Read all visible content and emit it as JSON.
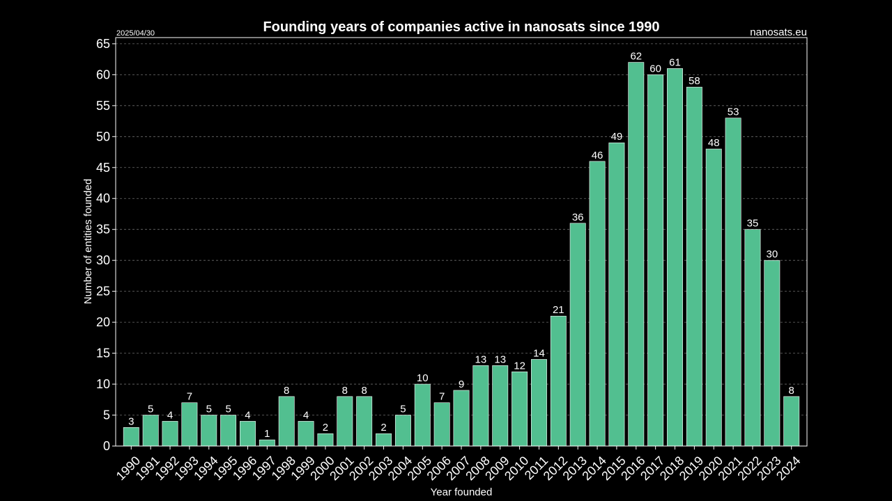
{
  "header": {
    "date": "2025/04/30",
    "source": "nanosats.eu"
  },
  "colors": {
    "background": "#000000",
    "bar": "#52bf90",
    "bar_edge": "#ffffff",
    "text": "#ffffff",
    "grid": "#6e6e6e",
    "axes": "#ffffff"
  },
  "chart_data": {
    "type": "bar",
    "title": "Founding years of companies active in nanosats since 1990",
    "xlabel": "Year founded",
    "ylabel": "Number of entities founded",
    "categories": [
      "1990",
      "1991",
      "1992",
      "1993",
      "1994",
      "1995",
      "1996",
      "1997",
      "1998",
      "1999",
      "2000",
      "2001",
      "2002",
      "2003",
      "2004",
      "2005",
      "2006",
      "2007",
      "2008",
      "2009",
      "2010",
      "2011",
      "2012",
      "2013",
      "2014",
      "2015",
      "2016",
      "2017",
      "2018",
      "2019",
      "2020",
      "2021",
      "2022",
      "2023",
      "2024"
    ],
    "values": [
      3,
      5,
      4,
      7,
      5,
      5,
      4,
      1,
      8,
      4,
      2,
      8,
      8,
      2,
      5,
      10,
      7,
      9,
      13,
      13,
      12,
      14,
      21,
      36,
      46,
      49,
      62,
      60,
      61,
      58,
      48,
      53,
      35,
      30,
      8
    ],
    "ylim": [
      0,
      66
    ],
    "yticks": [
      0,
      5,
      10,
      15,
      20,
      25,
      30,
      35,
      40,
      45,
      50,
      55,
      60,
      65
    ],
    "grid": true,
    "grid_axis": "y",
    "data_labels": true,
    "legend": "none"
  }
}
